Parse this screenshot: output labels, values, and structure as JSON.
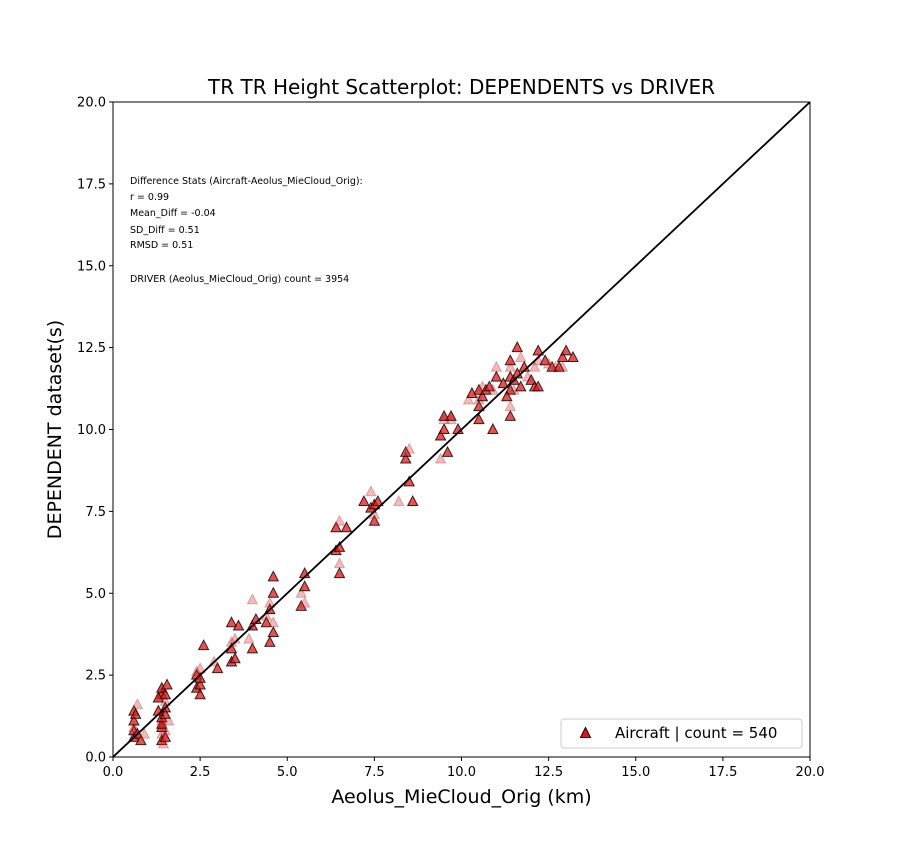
{
  "chart_data": {
    "type": "scatter",
    "title": "TR TR Height Scatterplot: DEPENDENTS vs DRIVER",
    "xlabel": "Aeolus_MieCloud_Orig (km)",
    "ylabel": "DEPENDENT dataset(s)",
    "xlim": [
      0,
      20
    ],
    "ylim": [
      0,
      20
    ],
    "xticks": [
      "0.0",
      "2.5",
      "5.0",
      "7.5",
      "10.0",
      "12.5",
      "15.0",
      "17.5",
      "20.0"
    ],
    "yticks": [
      "0.0",
      "2.5",
      "5.0",
      "7.5",
      "10.0",
      "12.5",
      "15.0",
      "17.5",
      "20.0"
    ],
    "grid": false,
    "legend_position": "lower-right",
    "reference_line": "1:1",
    "annotations": [
      "Difference Stats (Aircraft-Aeolus_MieCloud_Orig):",
      "r = 0.99",
      "Mean_Diff = -0.04",
      "SD_Diff = 0.51",
      "RMSD = 0.51",
      "DRIVER (Aeolus_MieCloud_Orig) count = 3954"
    ],
    "series": [
      {
        "name": "Aircraft | count = 540",
        "marker": "triangle",
        "color": "#ee1111",
        "edge_color": "#000000",
        "points": [
          [
            0.6,
            0.6
          ],
          [
            0.6,
            0.8
          ],
          [
            0.6,
            0.9
          ],
          [
            0.6,
            1.1
          ],
          [
            0.6,
            1.4
          ],
          [
            0.7,
            1.6
          ],
          [
            0.7,
            0.7
          ],
          [
            0.8,
            0.5
          ],
          [
            0.9,
            0.7
          ],
          [
            0.65,
            1.3
          ],
          [
            1.4,
            0.5
          ],
          [
            1.4,
            0.7
          ],
          [
            1.4,
            0.9
          ],
          [
            1.4,
            1.0
          ],
          [
            1.4,
            1.1
          ],
          [
            1.4,
            1.2
          ],
          [
            1.4,
            1.9
          ],
          [
            1.4,
            2.0
          ],
          [
            1.4,
            2.1
          ],
          [
            1.5,
            0.6
          ],
          [
            1.5,
            0.8
          ],
          [
            1.5,
            1.3
          ],
          [
            1.5,
            1.5
          ],
          [
            1.5,
            1.7
          ],
          [
            1.5,
            1.9
          ],
          [
            1.55,
            2.2
          ],
          [
            1.6,
            1.1
          ],
          [
            1.3,
            1.4
          ],
          [
            1.3,
            1.8
          ],
          [
            1.45,
            0.4
          ],
          [
            2.4,
            2.1
          ],
          [
            2.4,
            2.5
          ],
          [
            2.4,
            2.6
          ],
          [
            2.5,
            2.2
          ],
          [
            2.5,
            2.4
          ],
          [
            2.5,
            2.7
          ],
          [
            2.5,
            1.9
          ],
          [
            2.6,
            3.4
          ],
          [
            2.9,
            2.9
          ],
          [
            3.0,
            2.7
          ],
          [
            3.4,
            3.3
          ],
          [
            3.4,
            3.5
          ],
          [
            3.4,
            2.9
          ],
          [
            3.4,
            4.1
          ],
          [
            3.5,
            3.6
          ],
          [
            3.5,
            3.0
          ],
          [
            3.6,
            4.0
          ],
          [
            3.9,
            3.6
          ],
          [
            4.0,
            3.3
          ],
          [
            4.0,
            4.0
          ],
          [
            4.0,
            4.8
          ],
          [
            4.1,
            4.2
          ],
          [
            4.4,
            4.1
          ],
          [
            4.4,
            4.3
          ],
          [
            4.5,
            3.5
          ],
          [
            4.5,
            4.5
          ],
          [
            4.5,
            4.7
          ],
          [
            4.6,
            5.0
          ],
          [
            4.6,
            5.5
          ],
          [
            4.6,
            4.1
          ],
          [
            4.6,
            3.8
          ],
          [
            5.4,
            4.6
          ],
          [
            5.4,
            5.0
          ],
          [
            5.5,
            5.2
          ],
          [
            5.5,
            5.6
          ],
          [
            5.5,
            4.7
          ],
          [
            6.4,
            6.3
          ],
          [
            6.4,
            7.0
          ],
          [
            6.5,
            7.2
          ],
          [
            6.5,
            6.4
          ],
          [
            6.5,
            5.6
          ],
          [
            6.5,
            5.9
          ],
          [
            6.7,
            7.0
          ],
          [
            7.2,
            7.8
          ],
          [
            7.4,
            8.1
          ],
          [
            7.4,
            7.6
          ],
          [
            7.5,
            7.2
          ],
          [
            7.5,
            7.4
          ],
          [
            7.5,
            7.7
          ],
          [
            7.6,
            7.8
          ],
          [
            8.2,
            7.8
          ],
          [
            8.4,
            9.1
          ],
          [
            8.4,
            9.3
          ],
          [
            8.5,
            9.4
          ],
          [
            8.5,
            8.4
          ],
          [
            8.6,
            7.8
          ],
          [
            9.4,
            9.1
          ],
          [
            9.4,
            9.8
          ],
          [
            9.5,
            10.0
          ],
          [
            9.5,
            10.3
          ],
          [
            9.5,
            10.4
          ],
          [
            9.6,
            9.3
          ],
          [
            9.7,
            10.3
          ],
          [
            9.7,
            10.4
          ],
          [
            9.9,
            10.0
          ],
          [
            10.2,
            10.9
          ],
          [
            10.5,
            10.3
          ],
          [
            10.5,
            10.7
          ],
          [
            10.5,
            10.9
          ],
          [
            10.5,
            11.2
          ],
          [
            10.6,
            11.0
          ],
          [
            10.6,
            11.3
          ],
          [
            10.7,
            11.2
          ],
          [
            10.8,
            11.3
          ],
          [
            10.9,
            11.2
          ],
          [
            10.9,
            10.0
          ],
          [
            11.0,
            11.6
          ],
          [
            11.0,
            11.9
          ],
          [
            11.2,
            11.4
          ],
          [
            11.4,
            10.4
          ],
          [
            11.4,
            10.7
          ],
          [
            11.4,
            11.2
          ],
          [
            11.4,
            11.6
          ],
          [
            11.4,
            11.9
          ],
          [
            11.4,
            12.1
          ],
          [
            11.5,
            11.5
          ],
          [
            11.5,
            11.2
          ],
          [
            11.6,
            11.7
          ],
          [
            11.6,
            12.5
          ],
          [
            11.7,
            12.2
          ],
          [
            11.7,
            11.3
          ],
          [
            11.8,
            11.9
          ],
          [
            11.9,
            11.6
          ],
          [
            12.0,
            11.5
          ],
          [
            12.1,
            11.3
          ],
          [
            12.1,
            11.9
          ],
          [
            12.2,
            12.4
          ],
          [
            12.2,
            11.3
          ],
          [
            12.2,
            12.1
          ],
          [
            12.4,
            12.1
          ],
          [
            12.6,
            11.9
          ],
          [
            12.7,
            11.9
          ],
          [
            12.8,
            11.9
          ],
          [
            12.9,
            12.2
          ],
          [
            12.9,
            11.9
          ],
          [
            13.0,
            12.4
          ],
          [
            13.2,
            12.2
          ],
          [
            12.5,
            12.0
          ],
          [
            11.3,
            11.0
          ],
          [
            10.3,
            11.1
          ]
        ]
      }
    ]
  }
}
